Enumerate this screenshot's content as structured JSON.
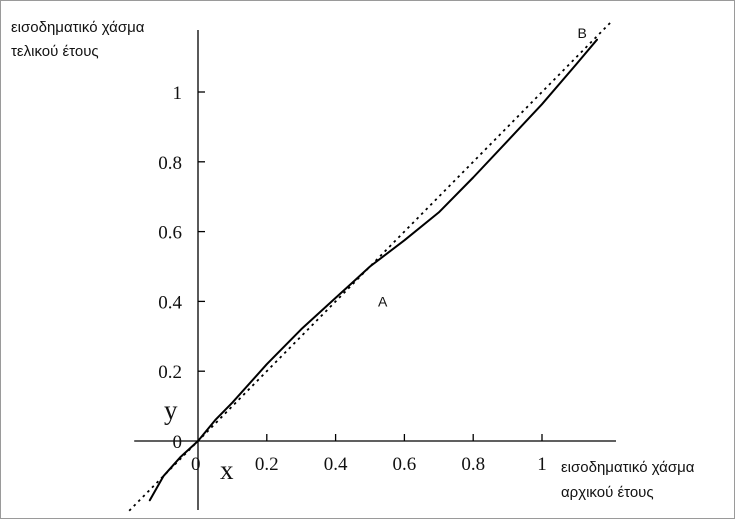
{
  "chart_data": {
    "type": "line",
    "title": "",
    "xlabel_lines": [
      "εισοδηματικό χάσμα",
      "αρχικού έτους"
    ],
    "ylabel_lines": [
      "εισοδηματικό χάσμα",
      "τελικού έτους"
    ],
    "x_axis_letter": "x",
    "y_axis_letter": "y",
    "xlim": [
      -0.2,
      1.2
    ],
    "ylim": [
      -0.22,
      1.15
    ],
    "x_ticks": [
      {
        "value": 0,
        "label": "0"
      },
      {
        "value": 0.2,
        "label": "0.2"
      },
      {
        "value": 0.4,
        "label": "0.4"
      },
      {
        "value": 0.6,
        "label": "0.6"
      },
      {
        "value": 0.8,
        "label": "0.8"
      },
      {
        "value": 1,
        "label": "1"
      }
    ],
    "y_ticks": [
      {
        "value": 0,
        "label": "0"
      },
      {
        "value": 0.2,
        "label": "0.2"
      },
      {
        "value": 0.4,
        "label": "0.4"
      },
      {
        "value": 0.6,
        "label": "0.6"
      },
      {
        "value": 0.8,
        "label": "0.8"
      },
      {
        "value": 1,
        "label": "1"
      }
    ],
    "grid": false,
    "legend": "none",
    "series": [
      {
        "style": "solid",
        "color": "#000000",
        "x": [
          -0.14,
          -0.1,
          -0.05,
          0,
          0.05,
          0.1,
          0.2,
          0.3,
          0.4,
          0.45,
          0.5,
          0.6,
          0.7,
          0.8,
          0.9,
          1.0,
          1.1,
          1.16
        ],
        "y": [
          -0.17,
          -0.1,
          -0.045,
          0,
          0.06,
          0.11,
          0.22,
          0.32,
          0.41,
          0.455,
          0.5,
          0.575,
          0.655,
          0.755,
          0.86,
          0.965,
          1.08,
          1.15
        ]
      },
      {
        "style": "dotted",
        "color": "#000000",
        "x": [
          -0.2,
          1.2
        ],
        "y": [
          -0.2,
          1.2
        ]
      }
    ],
    "annotations": [
      {
        "label": "A",
        "x": 0.5,
        "y": 0.5
      },
      {
        "label": "B",
        "x": 1.08,
        "y": 1.08
      }
    ]
  }
}
